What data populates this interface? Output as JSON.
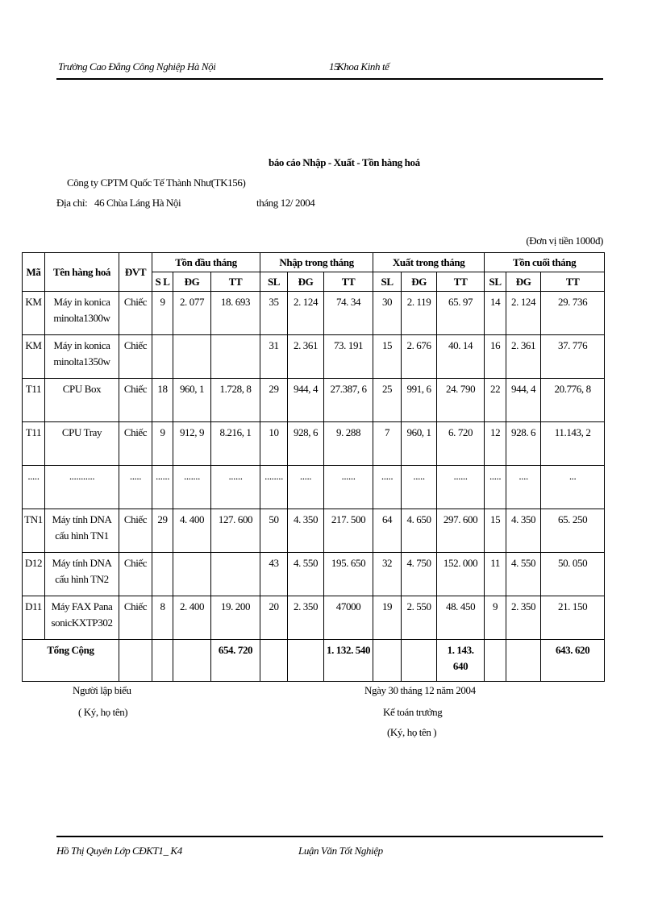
{
  "header": {
    "school": "Trường Cao Đẳng Công Nghiệp Hà Nội",
    "page_number": "15",
    "department": "Khoa Kinh tế"
  },
  "report": {
    "title": "báo cáo Nhập - Xuất - Tồn hàng hoá",
    "company": "Công ty CPTM Quốc Tế Thành Như(TK156)",
    "address_label": "Địa chỉ:",
    "address": "46 Chùa Láng Hà Nội",
    "period": "tháng 12/ 2004",
    "unit_note": "(Đơn vị tiền 1000đ)"
  },
  "table": {
    "columns": [
      "Mã",
      "Tên hàng hoá",
      "ĐVT"
    ],
    "groups": [
      "Tồn đầu tháng",
      "Nhập trong tháng",
      "Xuất trong tháng",
      "Tồn cuối tháng"
    ],
    "subcolumns": [
      "S L",
      "ĐG",
      "TT",
      "SL",
      "ĐG",
      "TT",
      "SL",
      "ĐG",
      "TT",
      "SL",
      "ĐG",
      "TT"
    ],
    "rows": [
      [
        "KM",
        "Máy in konica minolta1300w",
        "Chiếc",
        "9",
        "2. 077",
        "18. 693",
        "35",
        "2. 124",
        "74. 34",
        "30",
        "2. 119",
        "65. 97",
        "14",
        "2. 124",
        "29. 736"
      ],
      [
        "KM",
        "Máy in konica minolta1350w",
        "Chiếc",
        null,
        null,
        null,
        "31",
        "2. 361",
        "73. 191",
        "15",
        "2. 676",
        "40. 14",
        "16",
        "2. 361",
        "37. 776"
      ],
      [
        "T11",
        "CPU Box",
        "Chiếc",
        "18",
        "960, 1",
        "1.728, 8",
        "29",
        "944, 4",
        "27.387, 6",
        "25",
        "991, 6",
        "24. 790",
        "22",
        "944, 4",
        "20.776, 8"
      ],
      [
        "T11",
        "CPU Tray",
        "Chiếc",
        "9",
        "912, 9",
        "8.216, 1",
        "10",
        "928, 6",
        "9. 288",
        "7",
        "960, 1",
        "6. 720",
        "12",
        "928. 6",
        "11.143, 2"
      ],
      [
        ".....",
        "...........",
        ".....",
        "......",
        ".......",
        "......",
        "........",
        ".....",
        "......",
        ".....",
        ".....",
        "......",
        ".....",
        "....",
        "..."
      ],
      [
        "TN1",
        "Máy tính DNA cấu hình TN1",
        "Chiếc",
        "29",
        "4. 400",
        "127. 600",
        "50",
        "4. 350",
        "217. 500",
        "64",
        "4. 650",
        "297. 600",
        "15",
        "4. 350",
        "65. 250"
      ],
      [
        "D12",
        "Máy tính DNA cấu hình TN2",
        "Chiếc",
        null,
        null,
        null,
        "43",
        "4. 550",
        "195. 650",
        "32",
        "4. 750",
        "152. 000",
        "11",
        "4. 550",
        "50. 050"
      ],
      [
        "D11",
        "Máy FAX Pana sonicKXTP302",
        "Chiếc",
        "8",
        "2. 400",
        "19. 200",
        "20",
        "2. 350",
        "47000",
        "19",
        "2. 550",
        "48. 450",
        "9",
        "2. 350",
        "21. 150"
      ]
    ],
    "total": {
      "label": "Tổng Cộng",
      "values": [
        null,
        null,
        null,
        "654. 720",
        null,
        null,
        "1. 132. 540",
        null,
        null,
        "1. 143. 640",
        null,
        null,
        "643. 620"
      ]
    }
  },
  "signatures": {
    "preparer": "Người lập biểu",
    "preparer_note": "( Ký, họ tên)",
    "date": "Ngày 30 tháng 12 năm 2004",
    "accountant": "Kế toán trưởng",
    "accountant_note": "(Ký, họ tên )"
  },
  "footer": {
    "author": "Hồ Thị Quyên Lớp CĐKT1_ K4",
    "thesis": "Luận Văn Tốt Nghiệp"
  }
}
